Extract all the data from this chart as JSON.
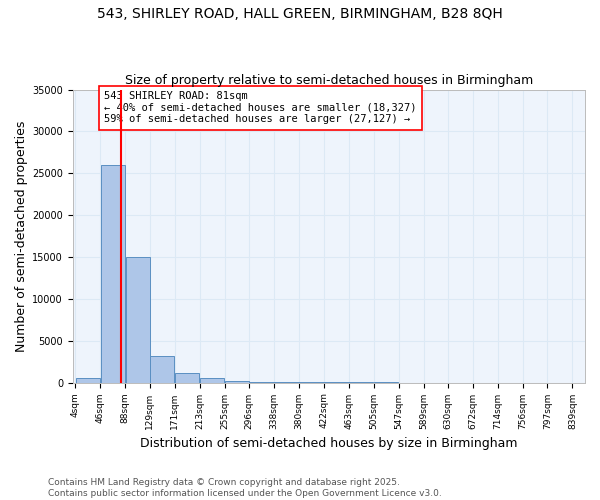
{
  "title": "543, SHIRLEY ROAD, HALL GREEN, BIRMINGHAM, B28 8QH",
  "subtitle": "Size of property relative to semi-detached houses in Birmingham",
  "xlabel": "Distribution of semi-detached houses by size in Birmingham",
  "ylabel": "Number of semi-detached properties",
  "property_size": 81,
  "annotation_line1": "543 SHIRLEY ROAD: 81sqm",
  "annotation_line2": "← 40% of semi-detached houses are smaller (18,327)",
  "annotation_line3": "59% of semi-detached houses are larger (27,127) →",
  "bin_edges": [
    4,
    46,
    88,
    129,
    171,
    213,
    255,
    296,
    338,
    380,
    422,
    463,
    505,
    547,
    589,
    630,
    672,
    714,
    756,
    797,
    839
  ],
  "bar_heights": [
    500,
    26000,
    15000,
    3200,
    1100,
    500,
    200,
    80,
    50,
    30,
    20,
    15,
    10,
    8,
    5,
    4,
    3,
    2,
    1,
    1
  ],
  "bar_color": "#aec6e8",
  "bar_edge_color": "#5a8fc2",
  "grid_color": "#dce9f5",
  "background_color": "#eef4fc",
  "vline_color": "red",
  "vline_x": 81,
  "ylim": [
    0,
    35000
  ],
  "yticks": [
    0,
    5000,
    10000,
    15000,
    20000,
    25000,
    30000,
    35000
  ],
  "tick_labels": [
    "4sqm",
    "46sqm",
    "88sqm",
    "129sqm",
    "171sqm",
    "213sqm",
    "255sqm",
    "296sqm",
    "338sqm",
    "380sqm",
    "422sqm",
    "463sqm",
    "505sqm",
    "547sqm",
    "589sqm",
    "630sqm",
    "672sqm",
    "714sqm",
    "756sqm",
    "797sqm",
    "839sqm"
  ],
  "footer_text": "Contains HM Land Registry data © Crown copyright and database right 2025.\nContains public sector information licensed under the Open Government Licence v3.0.",
  "title_fontsize": 10,
  "subtitle_fontsize": 9,
  "axis_label_fontsize": 9,
  "tick_fontsize": 7,
  "annotation_fontsize": 7.5,
  "footer_fontsize": 6.5
}
